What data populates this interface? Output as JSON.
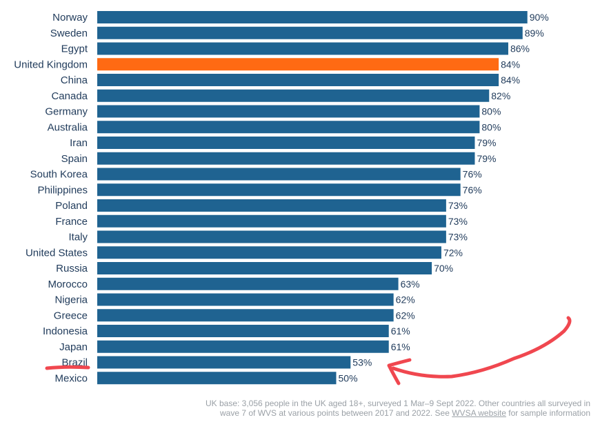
{
  "chart_data": {
    "type": "bar",
    "orientation": "horizontal",
    "categories": [
      "Norway",
      "Sweden",
      "Egypt",
      "United Kingdom",
      "China",
      "Canada",
      "Germany",
      "Australia",
      "Iran",
      "Spain",
      "South Korea",
      "Philippines",
      "Poland",
      "France",
      "Italy",
      "United States",
      "Russia",
      "Morocco",
      "Nigeria",
      "Greece",
      "Indonesia",
      "Japan",
      "Brazil",
      "Mexico"
    ],
    "values": [
      90,
      89,
      86,
      84,
      84,
      82,
      80,
      80,
      79,
      79,
      76,
      76,
      73,
      73,
      73,
      72,
      70,
      63,
      62,
      62,
      61,
      61,
      53,
      50
    ],
    "value_labels": [
      "90%",
      "89%",
      "86%",
      "84%",
      "84%",
      "82%",
      "80%",
      "80%",
      "79%",
      "79%",
      "76%",
      "76%",
      "73%",
      "73%",
      "73%",
      "72%",
      "70%",
      "63%",
      "62%",
      "62%",
      "61%",
      "61%",
      "53%",
      "50%"
    ],
    "highlight_category": "United Kingdom",
    "xlim": [
      0,
      100
    ],
    "grid": false,
    "legend": "none",
    "colors": {
      "bar": "#1f6391",
      "highlight": "#ff6a13",
      "text": "#1f3a5a",
      "annotation": "#f0474f"
    },
    "annotations": [
      {
        "kind": "underline",
        "target": "Brazil"
      },
      {
        "kind": "arrow",
        "target": "Brazil",
        "style": "hand-drawn"
      }
    ]
  },
  "footnote": {
    "line1": "UK base: 3,056 people in the UK aged 18+, surveyed 1 Mar–9 Sept 2022. Other countries all surveyed in",
    "line2_pre": "wave 7 of WVS at various points between 2017 and 2022. See ",
    "link": "WVSA website",
    "line2_post": " for sample information"
  }
}
